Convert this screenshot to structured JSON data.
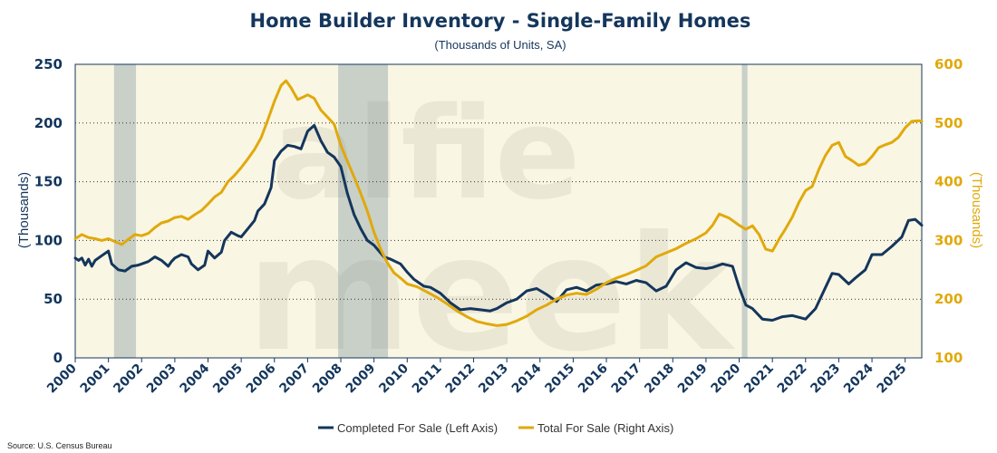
{
  "chart_data": {
    "type": "line",
    "title": "Home Builder Inventory - Single-Family Homes",
    "subtitle": "(Thousands of Units, SA)",
    "ylabel_left": "(Thousands)",
    "ylabel_right": "(Thousands)",
    "x_range": [
      2000.0,
      2025.5
    ],
    "ylim_left": [
      0,
      250
    ],
    "ylim_right": [
      100,
      600
    ],
    "left_ticks": [
      "0",
      "50",
      "100",
      "150",
      "200",
      "250"
    ],
    "right_ticks": [
      "100",
      "200",
      "300",
      "400",
      "500",
      "600"
    ],
    "x_ticks": [
      "2000",
      "2001",
      "2002",
      "2003",
      "2004",
      "2005",
      "2006",
      "2007",
      "2008",
      "2009",
      "2010",
      "2011",
      "2012",
      "2013",
      "2014",
      "2015",
      "2016",
      "2017",
      "2018",
      "2019",
      "2020",
      "2021",
      "2022",
      "2023",
      "2024",
      "2025"
    ],
    "recessions": [
      [
        2001.17,
        2001.83
      ],
      [
        2007.92,
        2009.42
      ],
      [
        2020.08,
        2020.25
      ]
    ],
    "grid": "horizontal-dotted",
    "legend_position": "bottom",
    "source": "Source: U.S. Census Bureau",
    "watermark": "alfie meek",
    "colors": {
      "completed": "#14365c",
      "total": "#e0a90c",
      "plot_bg": "#faf6e4",
      "recession": "#b7c3bf"
    },
    "series": [
      {
        "name": "Completed For Sale (Left Axis)",
        "axis": "left",
        "x": [
          2000.0,
          2000.1,
          2000.2,
          2000.3,
          2000.4,
          2000.5,
          2000.6,
          2000.8,
          2001.0,
          2001.1,
          2001.3,
          2001.5,
          2001.7,
          2001.9,
          2002.0,
          2002.2,
          2002.4,
          2002.6,
          2002.8,
          2002.9,
          2003.0,
          2003.2,
          2003.4,
          2003.5,
          2003.7,
          2003.9,
          2004.0,
          2004.2,
          2004.4,
          2004.5,
          2004.7,
          2004.9,
          2005.0,
          2005.2,
          2005.4,
          2005.5,
          2005.7,
          2005.9,
          2006.0,
          2006.2,
          2006.4,
          2006.6,
          2006.8,
          2007.0,
          2007.2,
          2007.4,
          2007.6,
          2007.8,
          2008.0,
          2008.2,
          2008.4,
          2008.6,
          2008.8,
          2009.0,
          2009.3,
          2009.5,
          2009.8,
          2010.0,
          2010.2,
          2010.5,
          2010.7,
          2011.0,
          2011.3,
          2011.6,
          2011.9,
          2012.2,
          2012.5,
          2012.7,
          2013.0,
          2013.3,
          2013.6,
          2013.9,
          2014.2,
          2014.5,
          2014.8,
          2015.1,
          2015.4,
          2015.7,
          2016.0,
          2016.3,
          2016.6,
          2016.9,
          2017.2,
          2017.5,
          2017.8,
          2018.1,
          2018.4,
          2018.7,
          2019.0,
          2019.2,
          2019.5,
          2019.8,
          2020.0,
          2020.2,
          2020.4,
          2020.7,
          2021.0,
          2021.3,
          2021.6,
          2022.0,
          2022.3,
          2022.6,
          2022.8,
          2023.0,
          2023.3,
          2023.5,
          2023.8,
          2024.0,
          2024.3,
          2024.6,
          2024.9,
          2025.1,
          2025.3,
          2025.5
        ],
        "values": [
          85,
          83,
          85,
          79,
          84,
          78,
          83,
          87,
          91,
          80,
          75,
          74,
          78,
          79,
          80,
          82,
          86,
          83,
          78,
          82,
          85,
          88,
          86,
          80,
          75,
          79,
          91,
          85,
          90,
          100,
          107,
          104,
          103,
          110,
          117,
          125,
          131,
          145,
          168,
          176,
          181,
          180,
          178,
          193,
          198,
          185,
          175,
          171,
          163,
          140,
          122,
          110,
          100,
          96,
          86,
          84,
          80,
          73,
          67,
          61,
          60,
          55,
          47,
          41,
          42,
          41,
          40,
          42,
          47,
          50,
          57,
          59,
          54,
          48,
          58,
          60,
          57,
          62,
          63,
          65,
          63,
          66,
          64,
          57,
          61,
          75,
          81,
          77,
          76,
          77,
          80,
          78,
          60,
          45,
          42,
          33,
          32,
          35,
          36,
          33,
          42,
          60,
          72,
          71,
          63,
          68,
          75,
          88,
          88,
          95,
          103,
          117,
          118,
          113
        ]
      },
      {
        "name": "Total For Sale (Right Axis)",
        "axis": "right",
        "x": [
          2000.0,
          2000.2,
          2000.4,
          2000.6,
          2000.8,
          2001.0,
          2001.2,
          2001.4,
          2001.6,
          2001.8,
          2002.0,
          2002.2,
          2002.4,
          2002.6,
          2002.8,
          2003.0,
          2003.2,
          2003.4,
          2003.6,
          2003.8,
          2004.0,
          2004.2,
          2004.4,
          2004.6,
          2004.8,
          2005.0,
          2005.2,
          2005.4,
          2005.6,
          2005.8,
          2006.0,
          2006.2,
          2006.35,
          2006.5,
          2006.7,
          2006.9,
          2007.0,
          2007.2,
          2007.4,
          2007.6,
          2007.8,
          2008.0,
          2008.2,
          2008.4,
          2008.6,
          2008.8,
          2009.0,
          2009.2,
          2009.4,
          2009.6,
          2009.8,
          2010.0,
          2010.3,
          2010.6,
          2010.9,
          2011.2,
          2011.5,
          2011.8,
          2012.1,
          2012.4,
          2012.7,
          2013.0,
          2013.3,
          2013.6,
          2013.9,
          2014.2,
          2014.5,
          2014.8,
          2015.1,
          2015.4,
          2015.7,
          2016.0,
          2016.3,
          2016.6,
          2016.9,
          2017.2,
          2017.5,
          2017.8,
          2018.1,
          2018.4,
          2018.7,
          2019.0,
          2019.2,
          2019.4,
          2019.7,
          2020.0,
          2020.2,
          2020.4,
          2020.6,
          2020.8,
          2021.0,
          2021.2,
          2021.4,
          2021.6,
          2021.8,
          2022.0,
          2022.2,
          2022.4,
          2022.6,
          2022.8,
          2023.0,
          2023.2,
          2023.4,
          2023.6,
          2023.8,
          2024.0,
          2024.2,
          2024.4,
          2024.6,
          2024.8,
          2025.0,
          2025.2,
          2025.4,
          2025.5
        ],
        "values": [
          303,
          310,
          305,
          303,
          300,
          303,
          298,
          293,
          302,
          310,
          308,
          312,
          322,
          330,
          333,
          339,
          341,
          336,
          344,
          351,
          362,
          374,
          382,
          400,
          411,
          424,
          439,
          455,
          475,
          505,
          537,
          564,
          572,
          560,
          540,
          545,
          548,
          542,
          522,
          510,
          498,
          462,
          435,
          408,
          380,
          350,
          314,
          285,
          262,
          245,
          236,
          226,
          221,
          212,
          203,
          192,
          180,
          170,
          162,
          158,
          155,
          157,
          163,
          171,
          182,
          190,
          200,
          207,
          210,
          208,
          217,
          228,
          236,
          242,
          249,
          257,
          272,
          279,
          286,
          295,
          303,
          313,
          326,
          345,
          338,
          326,
          319,
          325,
          310,
          285,
          282,
          302,
          320,
          340,
          365,
          385,
          392,
          421,
          445,
          462,
          467,
          443,
          436,
          428,
          431,
          443,
          458,
          463,
          467,
          476,
          492,
          503,
          504,
          503
        ]
      }
    ]
  }
}
